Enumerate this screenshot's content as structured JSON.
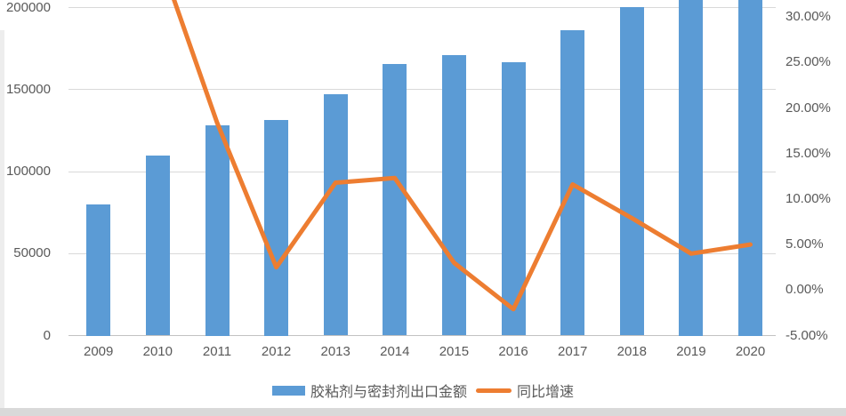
{
  "chart_data": {
    "type": "bar+line",
    "categories": [
      "2009",
      "2010",
      "2011",
      "2012",
      "2013",
      "2014",
      "2015",
      "2016",
      "2017",
      "2018",
      "2019",
      "2020"
    ],
    "series": [
      {
        "name": "胶粘剂与密封剂出口金额",
        "type": "bar",
        "axis": "left",
        "color": "#5B9BD5",
        "values": [
          80000,
          110000,
          128500,
          131500,
          147000,
          165500,
          171000,
          167000,
          186500,
          200500,
          208500,
          219000
        ]
      },
      {
        "name": "同比增速",
        "type": "line",
        "axis": "right",
        "color": "#ED7D31",
        "values": [
          null,
          37.0,
          18.4,
          2.5,
          11.8,
          12.3,
          3.0,
          -2.1,
          11.6,
          7.9,
          4.0,
          5.0
        ]
      }
    ],
    "left_axis": {
      "tick_labels": [
        "200000",
        "150000",
        "100000",
        "50000",
        "0"
      ],
      "tick_values": [
        200000,
        150000,
        100000,
        50000,
        0
      ],
      "min": 0,
      "tick_step": 50000,
      "visible_max": 205000
    },
    "right_axis": {
      "tick_labels": [
        "30.00%",
        "25.00%",
        "20.00%",
        "15.00%",
        "10.00%",
        "5.00%",
        "0.00%",
        "-5.00%"
      ],
      "tick_values": [
        30,
        25,
        20,
        15,
        10,
        5,
        0,
        -5
      ],
      "min": -5,
      "tick_step": 5,
      "visible_max": 31.5
    },
    "grid": true,
    "clipped_top": true,
    "legend": {
      "position": "bottom",
      "entries": [
        {
          "label": "胶粘剂与密封剂出口金额",
          "swatch": "bar",
          "color": "#5B9BD5"
        },
        {
          "label": "同比增速",
          "swatch": "line",
          "color": "#ED7D31"
        }
      ]
    }
  },
  "colors": {
    "bar": "#5B9BD5",
    "line": "#ED7D31",
    "gridline": "#D9D9D9",
    "axis_text": "#595959",
    "left_strip": "#EDEDED",
    "bottom_strip": "#D9D9D9"
  }
}
